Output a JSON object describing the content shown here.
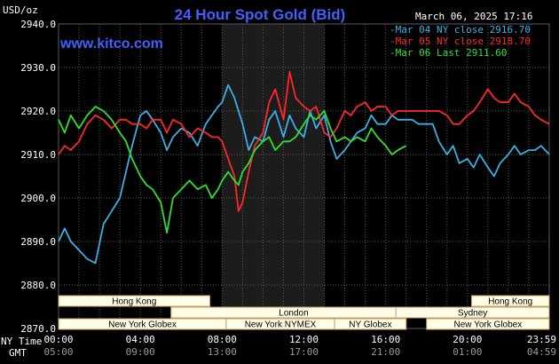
{
  "header": {
    "title": "24 Hour Spot Gold (Bid)",
    "unit": "USD/oz",
    "date": "March 06, 2025 17:16",
    "url": "www.kitco.com"
  },
  "colors": {
    "background": "#000000",
    "grid": "#5a5a5a",
    "session_shade": "#1c1c1c",
    "title": "#4060ff",
    "text": "#ffffff",
    "series": [
      "#3ab0e8",
      "#ff2828",
      "#30e030"
    ],
    "band_fill": "#fffde8",
    "band_border": "#c8a060"
  },
  "chart_data": {
    "type": "line",
    "ylim": [
      2870,
      2940
    ],
    "yticks": [
      "2940.0",
      "2930.0",
      "2920.0",
      "2910.0",
      "2900.0",
      "2890.0",
      "2880.0",
      "2870.0"
    ],
    "xlim": [
      0,
      24
    ],
    "xticks_ny": [
      "00:00",
      "04:00",
      "08:00",
      "12:00",
      "16:00",
      "20:00",
      "23:59"
    ],
    "xticks_gmt": [
      "05:00",
      "09:00",
      "13:00",
      "17:00",
      "21:00",
      "01:00",
      "04:59"
    ],
    "ny_time_label": "NY Time",
    "gmt_label": "GMT",
    "shaded_session": [
      8,
      13
    ],
    "legend": [
      "Mar 04 NY close 2916.70",
      "Mar 05 NY close 2918.70",
      "Mar 06 Last 2911.60"
    ],
    "series": [
      {
        "x": [
          0,
          0.3,
          0.6,
          1,
          1.4,
          1.8,
          2.2,
          2.6,
          3,
          3.3,
          3.6,
          4,
          4.3,
          4.6,
          5,
          5.3,
          5.6,
          6,
          6.4,
          6.8,
          7.2,
          7.5,
          7.8,
          8,
          8.3,
          8.6,
          8.8,
          9,
          9.3,
          9.6,
          10,
          10.3,
          10.6,
          11,
          11.3,
          11.6,
          12,
          12.3,
          12.6,
          13,
          13.3,
          13.6,
          14,
          14.3,
          14.6,
          15,
          15.3,
          15.6,
          16,
          16.3,
          16.6,
          17,
          17.3,
          17.6,
          18,
          18.3,
          18.6,
          19,
          19.3,
          19.6,
          20,
          20.3,
          20.6,
          21,
          21.3,
          21.6,
          22,
          22.3,
          22.6,
          23,
          23.3,
          23.6,
          24
        ],
        "values": [
          2890,
          2893,
          2890,
          2888,
          2886,
          2885,
          2894,
          2897,
          2900,
          2906,
          2912,
          2919,
          2920,
          2918,
          2915,
          2911,
          2914,
          2916,
          2915,
          2912,
          2917,
          2919,
          2921,
          2922,
          2926,
          2923,
          2920,
          2917,
          2911,
          2914,
          2913,
          2918,
          2920,
          2914,
          2919,
          2916,
          2914,
          2920,
          2916,
          2919,
          2913,
          2909,
          2911,
          2913,
          2915,
          2916,
          2919,
          2917,
          2917,
          2919,
          2918,
          2918,
          2918,
          2917,
          2917,
          2917,
          2913,
          2910,
          2912,
          2908,
          2909,
          2907,
          2910,
          2907,
          2905,
          2908,
          2910,
          2912,
          2910,
          2911,
          2911,
          2912,
          2910
        ]
      },
      {
        "x": [
          0,
          0.3,
          0.6,
          1,
          1.4,
          1.8,
          2.2,
          2.6,
          3,
          3.3,
          3.6,
          4,
          4.3,
          4.6,
          5,
          5.3,
          5.6,
          6,
          6.4,
          6.8,
          7.2,
          7.5,
          7.8,
          8,
          8.3,
          8.6,
          8.8,
          9,
          9.3,
          9.6,
          10,
          10.3,
          10.6,
          11,
          11.3,
          11.6,
          12,
          12.3,
          12.6,
          13,
          13.3,
          13.6,
          14,
          14.3,
          14.6,
          15,
          15.3,
          15.6,
          16,
          16.3,
          16.6,
          17,
          17.3,
          17.6,
          18,
          18.3,
          18.6,
          19,
          19.3,
          19.6,
          20,
          20.3,
          20.6,
          21,
          21.3,
          21.6,
          22,
          22.3,
          22.6,
          23,
          23.3,
          23.6,
          24
        ],
        "values": [
          2910,
          2912,
          2911,
          2913,
          2917,
          2919,
          2918,
          2916,
          2918,
          2918,
          2917,
          2917,
          2916,
          2918,
          2918,
          2915,
          2918,
          2917,
          2914,
          2916,
          2915,
          2914,
          2914,
          2913,
          2909,
          2905,
          2897,
          2899,
          2906,
          2912,
          2915,
          2922,
          2925,
          2918,
          2929,
          2923,
          2921,
          2920,
          2921,
          2915,
          2914,
          2916,
          2920,
          2919,
          2921,
          2922,
          2920,
          2921,
          2921,
          2919,
          2920,
          2920,
          2920,
          2920,
          2920,
          2920,
          2920,
          2919,
          2917,
          2917,
          2919,
          2920,
          2922,
          2925,
          2923,
          2922,
          2922,
          2924,
          2922,
          2921,
          2919,
          2918,
          2917
        ]
      },
      {
        "x": [
          0,
          0.3,
          0.6,
          1,
          1.4,
          1.8,
          2.2,
          2.6,
          3,
          3.3,
          3.6,
          4,
          4.3,
          4.6,
          5,
          5.3,
          5.6,
          6,
          6.4,
          6.8,
          7.2,
          7.5,
          7.8,
          8,
          8.3,
          8.6,
          8.8,
          9,
          9.3,
          9.6,
          10,
          10.3,
          10.6,
          11,
          11.3,
          11.6,
          12,
          12.3,
          12.6,
          13,
          13.3,
          13.6,
          14,
          14.3,
          14.6,
          15,
          15.3,
          15.6,
          16,
          16.3,
          16.6,
          17
        ],
        "values": [
          2918,
          2915,
          2919,
          2916,
          2919,
          2921,
          2920,
          2918,
          2915,
          2913,
          2909,
          2905,
          2903,
          2902,
          2899,
          2892,
          2900,
          2902,
          2904,
          2902,
          2903,
          2900,
          2902,
          2904,
          2906,
          2904,
          2903,
          2906,
          2908,
          2911,
          2913,
          2914,
          2911,
          2913,
          2913,
          2914,
          2917,
          2919,
          2918,
          2920,
          2916,
          2913,
          2914,
          2913,
          2914,
          2913,
          2916,
          2914,
          2912,
          2910,
          2911,
          2912
        ]
      }
    ],
    "market_bands": [
      {
        "label": "Hong Kong",
        "start": 0,
        "end": 7.4,
        "row": 0
      },
      {
        "label": "Hong Kong",
        "start": 20.2,
        "end": 24,
        "row": 0
      },
      {
        "label": "London",
        "start": 5.5,
        "end": 17.5,
        "row": 1
      },
      {
        "label": "Sydney",
        "start": 16.5,
        "end": 24,
        "row": 1
      },
      {
        "label": "New York Globex",
        "start": 0,
        "end": 8.2,
        "row": 2
      },
      {
        "label": "New York NYMEX",
        "start": 8.2,
        "end": 13.5,
        "row": 2
      },
      {
        "label": "NY Globex",
        "start": 13.5,
        "end": 17,
        "row": 2
      },
      {
        "label": "New York Globex",
        "start": 18,
        "end": 24,
        "row": 2
      }
    ]
  }
}
